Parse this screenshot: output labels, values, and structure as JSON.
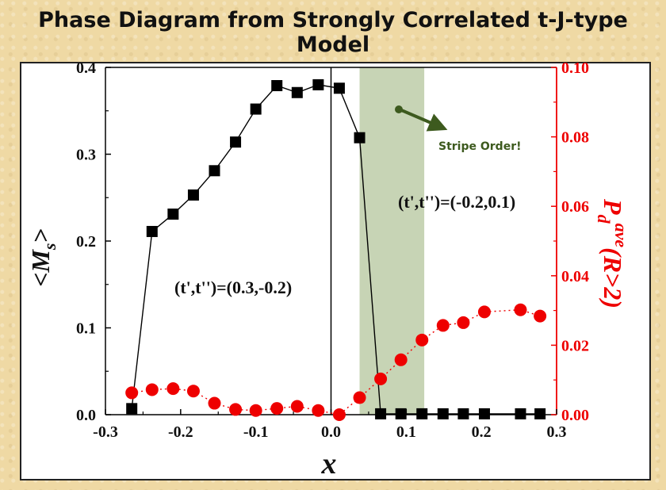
{
  "slide_title": "Phase Diagram from Strongly Correlated t-J-type Model",
  "chart_data": {
    "type": "scatter",
    "xlabel": "x",
    "ylabel_left": "<M_s>",
    "ylabel_right": "P_d^ave(R>2)",
    "xlim": [
      -0.3,
      0.3
    ],
    "ylim_left": [
      0,
      0.4
    ],
    "ylim_right": [
      0,
      0.1
    ],
    "x_ticks": [
      "-0.3",
      "-0.2",
      "-0.1",
      "0.0",
      "0.1",
      "0.2",
      "0.3"
    ],
    "y_left_ticks": [
      "0.0",
      "0.1",
      "0.2",
      "0.3",
      "0.4"
    ],
    "y_right_ticks": [
      "0.00",
      "0.02",
      "0.04",
      "0.06",
      "0.08",
      "0.10"
    ],
    "colors": {
      "ms": "#000000",
      "pd": "#ee0000",
      "stripe_band": "#c7d4b5",
      "stripe_text": "#3d5a1e"
    },
    "series": [
      {
        "axis": "left",
        "marker": "square",
        "x": [
          -0.265,
          -0.238,
          -0.21,
          -0.183,
          -0.155,
          -0.127,
          -0.1,
          -0.072,
          -0.045,
          -0.017,
          0.011,
          0.038,
          0.066,
          0.093,
          0.121,
          0.149,
          0.176,
          0.204,
          0.252,
          0.278
        ],
        "values": [
          0.007,
          0.211,
          0.231,
          0.253,
          0.281,
          0.314,
          0.352,
          0.379,
          0.371,
          0.38,
          0.376,
          0.319,
          0.001,
          0.001,
          0.001,
          0.001,
          0.001,
          0.001,
          0.001,
          0.001
        ]
      },
      {
        "axis": "right",
        "marker": "circle",
        "x": [
          -0.265,
          -0.238,
          -0.21,
          -0.183,
          -0.155,
          -0.127,
          -0.1,
          -0.072,
          -0.045,
          -0.017,
          0.011,
          0.038,
          0.066,
          0.093,
          0.121,
          0.149,
          0.176,
          0.204,
          0.252,
          0.278
        ],
        "values": [
          0.0063,
          0.0072,
          0.0075,
          0.0068,
          0.0033,
          0.0015,
          0.0012,
          0.0018,
          0.0024,
          0.0012,
          0.0,
          0.0049,
          0.0103,
          0.0158,
          0.0215,
          0.0257,
          0.0265,
          0.0296,
          0.0302,
          0.0284
        ]
      }
    ],
    "stripe_band_x": [
      0.038,
      0.124
    ],
    "vertical_line_x": 0.0,
    "annotations": {
      "left": "(t',t'')=(0.3,-0.2)",
      "right": "(t',t'')=(-0.2,0.1)",
      "stripe": "Stripe Order!"
    }
  }
}
